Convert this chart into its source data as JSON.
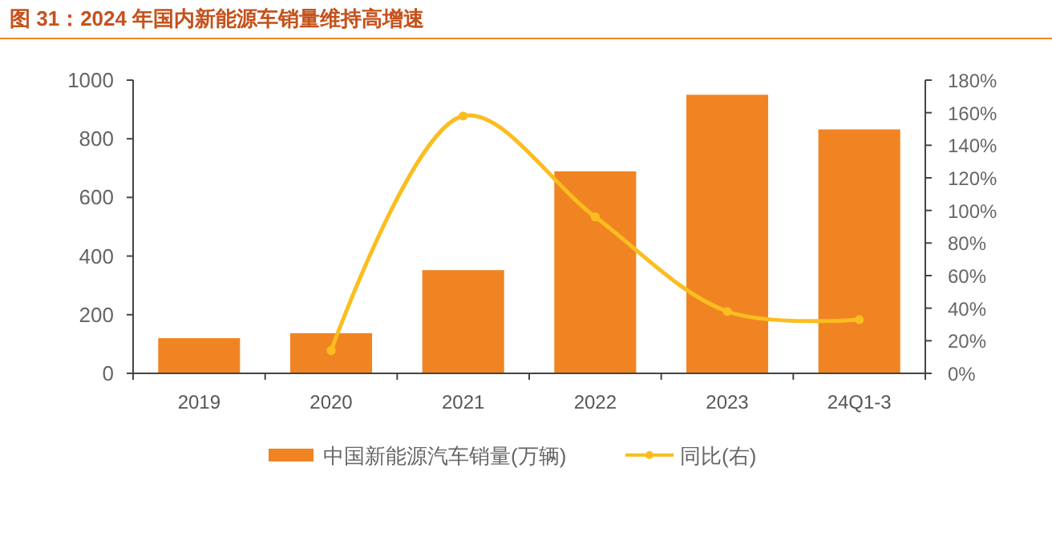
{
  "chart_data": {
    "type": "bar",
    "title": "图 31：2024 年国内新能源车销量维持高增速",
    "categories": [
      "2019",
      "2020",
      "2021",
      "2022",
      "2023",
      "24Q1-3"
    ],
    "series": [
      {
        "name": "中国新能源汽车销量(万辆)",
        "color": "#f08423",
        "values": [
          120,
          137,
          352,
          689,
          950,
          832
        ]
      },
      {
        "name": "同比(右)",
        "type": "line",
        "axis": "y2",
        "color": "#fbbd20",
        "marker": "circle",
        "values": [
          null,
          14,
          158,
          96,
          38,
          33
        ]
      }
    ],
    "ylim": [
      0,
      1000
    ],
    "yticks": [
      0,
      200,
      400,
      600,
      800,
      1000
    ],
    "y2lim": [
      0,
      180
    ],
    "y2ticks": [
      {
        "value": 0,
        "label": "0%"
      },
      {
        "value": 20,
        "label": "20%"
      },
      {
        "value": 40,
        "label": "40%"
      },
      {
        "value": 60,
        "label": "60%"
      },
      {
        "value": 80,
        "label": "80%"
      },
      {
        "value": 100,
        "label": "100%"
      },
      {
        "value": 120,
        "label": "120%"
      },
      {
        "value": 140,
        "label": "140%"
      },
      {
        "value": 160,
        "label": "160%"
      },
      {
        "value": 180,
        "label": "180%"
      }
    ],
    "legend": "bottom",
    "grid": false
  }
}
